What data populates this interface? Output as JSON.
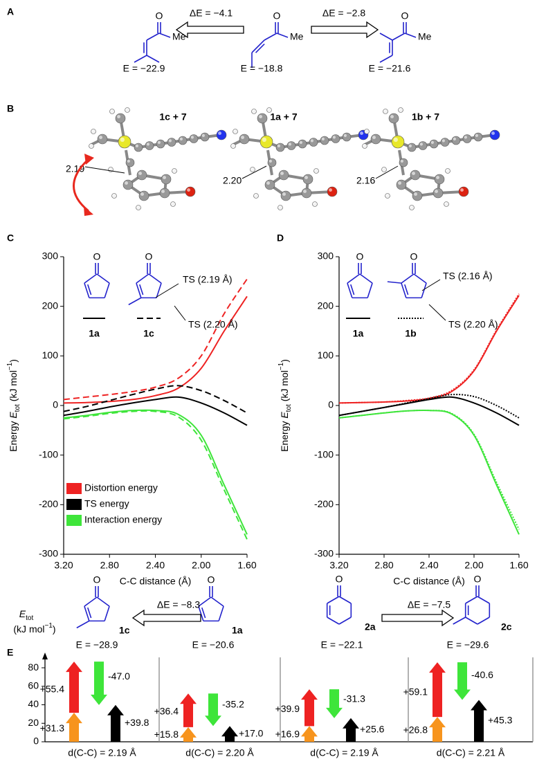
{
  "panel_a": {
    "label": "A",
    "structures": [
      {
        "o": "O",
        "me": "Me",
        "energy": "E = −22.9"
      },
      {
        "o": "O",
        "me": "Me",
        "energy": "E = −18.8"
      },
      {
        "o": "O",
        "me": "Me",
        "energy": "E = −21.6"
      }
    ],
    "arrows": [
      "ΔE = −4.1",
      "ΔE = −2.8"
    ]
  },
  "panel_b": {
    "label": "B",
    "complexes": [
      {
        "name": "1c + 7",
        "distance": "2.19"
      },
      {
        "name": "1a + 7",
        "distance": "2.20"
      },
      {
        "name": "1b + 7",
        "distance": "2.16"
      }
    ]
  },
  "chart_data": [
    {
      "type": "line",
      "panel": "C",
      "ylabel": [
        "Energy ",
        "E",
        "tot",
        " (kJ mol",
        "−1",
        ")"
      ],
      "xlabel": "C-C distance (Å)",
      "x": [
        3.2,
        3.0,
        2.8,
        2.6,
        2.4,
        2.2,
        2.0,
        1.8,
        1.6
      ],
      "xlim": [
        3.2,
        1.6
      ],
      "xticks": [
        {
          "value": 3.2,
          "label": "3.20"
        },
        {
          "value": 2.8,
          "label": "2.80"
        },
        {
          "value": 2.4,
          "label": "2.40"
        },
        {
          "value": 2.0,
          "label": "2.00"
        },
        {
          "value": 1.6,
          "label": "1.60"
        }
      ],
      "ylim": [
        -300,
        300
      ],
      "yticks": [
        -300,
        -200,
        -100,
        0,
        100,
        200,
        300
      ],
      "series": [
        {
          "name": "Distortion energy",
          "color": "#ee2222",
          "style": "solid",
          "values": [
            5,
            6,
            8,
            12,
            20,
            35,
            75,
            150,
            220
          ]
        },
        {
          "color": "#ee2222",
          "style": "dashed",
          "values": [
            12,
            17,
            22,
            28,
            37,
            55,
            100,
            185,
            255
          ]
        },
        {
          "name": "TS energy",
          "color": "#000000",
          "style": "solid",
          "values": [
            -20,
            -12,
            -3,
            5,
            12,
            17,
            5,
            -15,
            -40
          ]
        },
        {
          "color": "#000000",
          "style": "dashed",
          "values": [
            -12,
            -2,
            10,
            22,
            33,
            40,
            30,
            10,
            -15
          ]
        },
        {
          "name": "Interaction energy",
          "color": "#3ee53a",
          "style": "solid",
          "values": [
            -25,
            -20,
            -14,
            -10,
            -10,
            -18,
            -60,
            -160,
            -260
          ]
        },
        {
          "color": "#3ee53a",
          "style": "dashed",
          "values": [
            -27,
            -22,
            -16,
            -12,
            -12,
            -23,
            -70,
            -170,
            -270
          ]
        }
      ],
      "legend": "lower left",
      "key": [
        {
          "label": "1a",
          "o": "O",
          "style": "solid",
          "methyl": "none"
        },
        {
          "label": "1c",
          "o": "O",
          "style": "dashed",
          "methyl": "beta"
        }
      ],
      "annotations": [
        "TS (2.19 Å)",
        "TS (2.20 Å)"
      ]
    },
    {
      "type": "line",
      "panel": "D",
      "ylabel": [
        "Energy ",
        "E",
        "tot",
        " (kJ mol",
        "−1",
        ")"
      ],
      "xlabel": "C-C distance (Å)",
      "x": [
        3.2,
        3.0,
        2.8,
        2.6,
        2.4,
        2.2,
        2.0,
        1.8,
        1.6
      ],
      "xlim": [
        3.2,
        1.6
      ],
      "xticks": [
        {
          "value": 3.2,
          "label": "3.20"
        },
        {
          "value": 2.8,
          "label": "2.80"
        },
        {
          "value": 2.4,
          "label": "2.40"
        },
        {
          "value": 2.0,
          "label": "2.00"
        },
        {
          "value": 1.6,
          "label": "1.60"
        }
      ],
      "ylim": [
        -300,
        300
      ],
      "yticks": [
        -300,
        -200,
        -100,
        0,
        100,
        200,
        300
      ],
      "series": [
        {
          "color": "#ee2222",
          "style": "solid",
          "values": [
            5,
            6,
            7,
            9,
            14,
            28,
            70,
            150,
            222
          ]
        },
        {
          "color": "#ee2222",
          "style": "dotted",
          "values": [
            5,
            6,
            7,
            10,
            15,
            30,
            72,
            152,
            225
          ]
        },
        {
          "color": "#000000",
          "style": "solid",
          "values": [
            -20,
            -12,
            -4,
            4,
            12,
            17,
            5,
            -15,
            -40
          ]
        },
        {
          "color": "#000000",
          "style": "dotted",
          "values": [
            -20,
            -12,
            -4,
            5,
            14,
            22,
            18,
            0,
            -25
          ]
        },
        {
          "color": "#3ee53a",
          "style": "solid",
          "values": [
            -25,
            -20,
            -15,
            -11,
            -10,
            -17,
            -60,
            -160,
            -260
          ]
        },
        {
          "color": "#3ee53a",
          "style": "dotted",
          "values": [
            -25,
            -20,
            -15,
            -11,
            -10,
            -16,
            -58,
            -155,
            -250
          ]
        }
      ],
      "key": [
        {
          "label": "1a",
          "o": "O",
          "style": "solid",
          "methyl": "none"
        },
        {
          "label": "1b",
          "o": "O",
          "style": "dotted",
          "methyl": "alpha"
        }
      ],
      "annotations": [
        "TS (2.16 Å)",
        "TS (2.20 Å)"
      ]
    },
    {
      "type": "arrow_bar",
      "panel": "E",
      "ylabel": [
        "E",
        "tot",
        "(kJ mol",
        "−1",
        ")"
      ],
      "ylim": [
        0,
        95
      ],
      "yticks": [
        0,
        20,
        40,
        60,
        80
      ],
      "colors": [
        "#f7941d",
        "#ee2222",
        "#3ee53a",
        "#000000"
      ],
      "structures": [
        {
          "o": "O",
          "name": "1c",
          "energy": "E = −28.9"
        },
        {
          "o": "O",
          "name": "1a",
          "energy": "E = −20.6"
        },
        {
          "o": "O",
          "name": "2a",
          "energy": "E = −22.1"
        },
        {
          "o": "O",
          "name": "2c",
          "energy": "E = −29.6"
        }
      ],
      "arrows": [
        "ΔE = −8.3",
        "ΔE = −7.5"
      ],
      "sections": [
        {
          "label": "d(C-C) = 2.19 Å",
          "values": [
            31.3,
            55.4,
            -47.0,
            39.8
          ],
          "value_labels": [
            "+31.3",
            "+55.4",
            "-47.0",
            "+39.8"
          ]
        },
        {
          "label": "d(C-C) = 2.20 Å",
          "values": [
            15.8,
            36.4,
            -35.2,
            17.0
          ],
          "value_labels": [
            "+15.8",
            "+36.4",
            "-35.2",
            "+17.0"
          ]
        },
        {
          "label": "d(C-C) = 2.19 Å",
          "values": [
            16.9,
            39.9,
            -31.3,
            25.6
          ],
          "value_labels": [
            "+16.9",
            "+39.9",
            "-31.3",
            "+25.6"
          ]
        },
        {
          "label": "d(C-C) = 2.21 Å",
          "values": [
            26.8,
            59.1,
            -40.6,
            45.3
          ],
          "value_labels": [
            "+26.8",
            "+59.1",
            "-40.6",
            "+45.3"
          ]
        }
      ]
    }
  ]
}
